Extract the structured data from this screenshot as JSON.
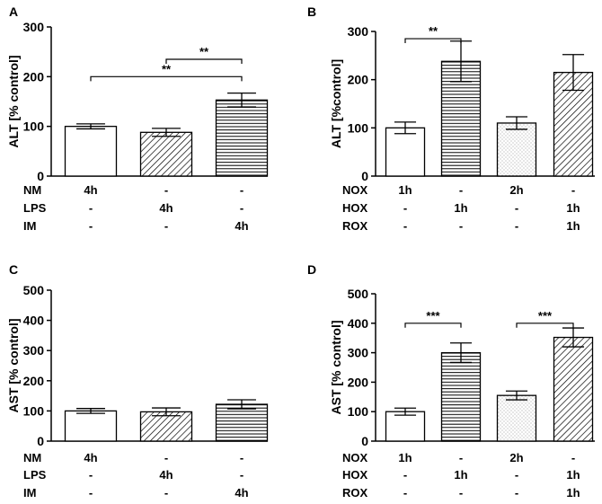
{
  "colors": {
    "ink": "#000000",
    "paper": "#ffffff",
    "dot": "#888888"
  },
  "chart_data": [
    {
      "panel": "A",
      "type": "bar",
      "ylabel": "ALT [% control]",
      "ylim": [
        0,
        300
      ],
      "yticks": [
        0,
        100,
        200,
        300
      ],
      "categories": [
        "NM 4h",
        "LPS 4h",
        "IM 4h"
      ],
      "values": [
        100,
        88,
        153
      ],
      "errors": [
        5,
        8,
        14
      ],
      "fills": [
        "white",
        "diagonal",
        "horizontal"
      ],
      "conditions": [
        {
          "label": "NM",
          "values": [
            "4h",
            "-",
            "-"
          ]
        },
        {
          "label": "LPS",
          "values": [
            "-",
            "4h",
            "-"
          ]
        },
        {
          "label": "IM",
          "values": [
            "-",
            "-",
            "4h"
          ]
        }
      ],
      "significance": [
        {
          "from": 1,
          "to": 2,
          "y": 235,
          "label": "**"
        },
        {
          "from": 0,
          "to": 2,
          "y": 200,
          "label": "**"
        }
      ]
    },
    {
      "panel": "B",
      "type": "bar",
      "ylabel": "ALT [%control]",
      "ylim": [
        0,
        300
      ],
      "yticks": [
        0,
        100,
        200,
        300
      ],
      "categories": [
        "NOX 1h",
        "HOX 1h",
        "NOX 2h",
        "HOX/ROX 1h"
      ],
      "values": [
        100,
        238,
        110,
        215
      ],
      "errors": [
        12,
        42,
        13,
        37
      ],
      "fills": [
        "white",
        "horizontal",
        "dotted",
        "diagonal"
      ],
      "conditions": [
        {
          "label": "NOX",
          "values": [
            "1h",
            "-",
            "2h",
            "-"
          ]
        },
        {
          "label": "HOX",
          "values": [
            "-",
            "1h",
            "-",
            "1h"
          ]
        },
        {
          "label": "ROX",
          "values": [
            "-",
            "-",
            "-",
            "1h"
          ]
        }
      ],
      "significance": [
        {
          "from": 0,
          "to": 1,
          "y": 285,
          "label": "**"
        }
      ]
    },
    {
      "panel": "C",
      "type": "bar",
      "ylabel": "AST [% control]",
      "ylim": [
        0,
        500
      ],
      "yticks": [
        0,
        100,
        200,
        300,
        400,
        500
      ],
      "categories": [
        "NM 4h",
        "LPS 4h",
        "IM 4h"
      ],
      "values": [
        100,
        97,
        122
      ],
      "errors": [
        8,
        13,
        15
      ],
      "fills": [
        "white",
        "diagonal",
        "horizontal"
      ],
      "conditions": [
        {
          "label": "NM",
          "values": [
            "4h",
            "-",
            "-"
          ]
        },
        {
          "label": "LPS",
          "values": [
            "-",
            "4h",
            "-"
          ]
        },
        {
          "label": "IM",
          "values": [
            "-",
            "-",
            "4h"
          ]
        }
      ],
      "significance": []
    },
    {
      "panel": "D",
      "type": "bar",
      "ylabel": "AST [% control]",
      "ylim": [
        0,
        500
      ],
      "yticks": [
        0,
        100,
        200,
        300,
        400,
        500
      ],
      "categories": [
        "NOX 1h",
        "HOX 1h",
        "NOX 2h",
        "HOX/ROX 1h"
      ],
      "values": [
        100,
        300,
        155,
        352
      ],
      "errors": [
        12,
        33,
        15,
        32
      ],
      "fills": [
        "white",
        "horizontal",
        "dotted",
        "diagonal"
      ],
      "conditions": [
        {
          "label": "NOX",
          "values": [
            "1h",
            "-",
            "2h",
            "-"
          ]
        },
        {
          "label": "HOX",
          "values": [
            "-",
            "1h",
            "-",
            "1h"
          ]
        },
        {
          "label": "ROX",
          "values": [
            "-",
            "-",
            "-",
            "1h"
          ]
        }
      ],
      "significance": [
        {
          "from": 0,
          "to": 1,
          "y": 400,
          "label": "***"
        },
        {
          "from": 2,
          "to": 3,
          "y": 400,
          "label": "***"
        }
      ]
    }
  ]
}
